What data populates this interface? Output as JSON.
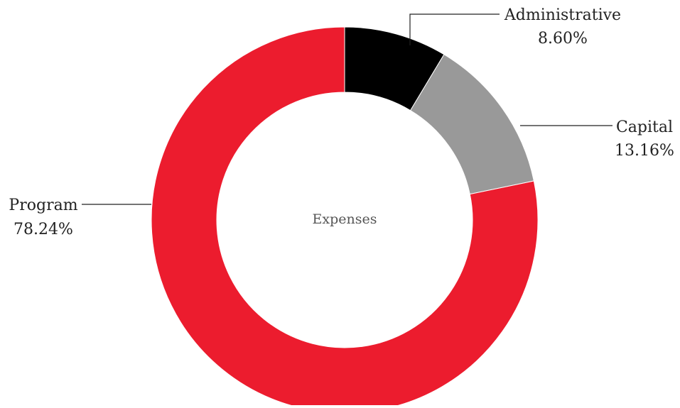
{
  "chart_data": {
    "type": "pie",
    "variant": "donut",
    "center_label": "Expenses",
    "slices": [
      {
        "label": "Administrative",
        "value": 8.6,
        "display": "8.60%",
        "color": "#000000"
      },
      {
        "label": "Capital",
        "value": 13.16,
        "display": "13.16%",
        "color": "#999999"
      },
      {
        "label": "Program",
        "value": 78.24,
        "display": "78.24%",
        "color": "#ec1c2e"
      }
    ],
    "start": "top, clockwise",
    "legend": "none (inline leader-line labels)"
  }
}
